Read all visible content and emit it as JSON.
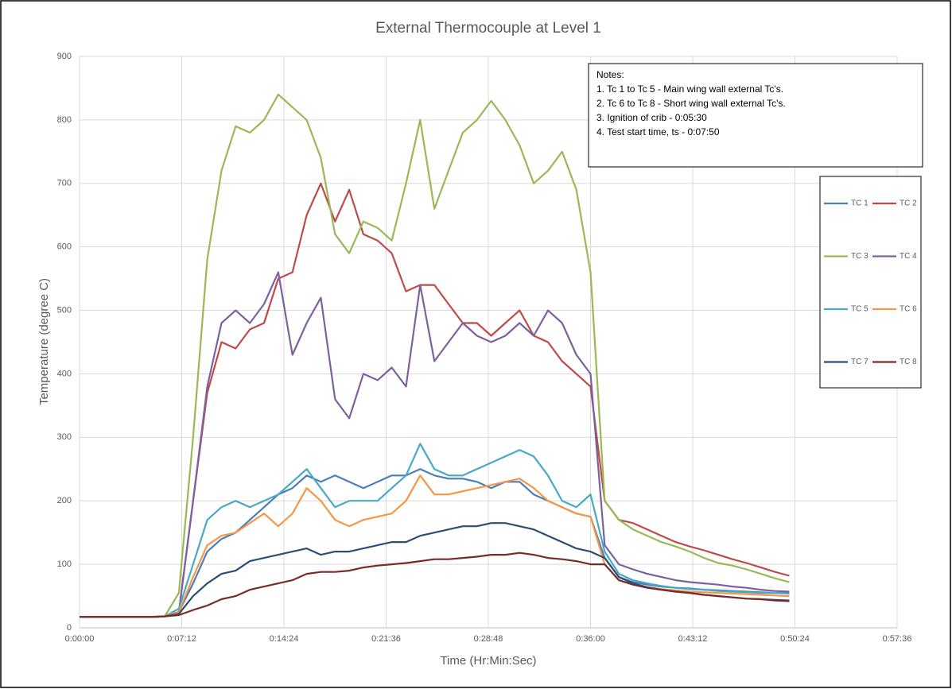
{
  "chart_data": {
    "type": "line",
    "title": "External Thermocouple at Level 1",
    "x_label": "Time (Hr:Min:Sec)",
    "y_label": "Temperature (degree C)",
    "grid": true,
    "legend": "right",
    "annotations": [
      "Notes:",
      "1. Tc 1 to Tc 5 - Main wing wall external Tc's.",
      "2. Tc 6 to Tc 8 - Short wing wall external Tc's.",
      "3. Ignition of crib - 0:05:30",
      "4. Test start time, ts - 0:07:50"
    ],
    "xlim": [
      0,
      3456
    ],
    "xticks": [
      {
        "value": 0,
        "label": "0:00:00"
      },
      {
        "value": 432,
        "label": "0:07:12"
      },
      {
        "value": 864,
        "label": "0:14:24"
      },
      {
        "value": 1296,
        "label": "0:21:36"
      },
      {
        "value": 1728,
        "label": "0:28:48"
      },
      {
        "value": 2160,
        "label": "0:36:00"
      },
      {
        "value": 2592,
        "label": "0:43:12"
      },
      {
        "value": 3024,
        "label": "0:50:24"
      },
      {
        "value": 3456,
        "label": "0:57:36"
      }
    ],
    "ylim": [
      0,
      900
    ],
    "yticks": [
      0,
      100,
      200,
      300,
      400,
      500,
      600,
      700,
      800,
      900
    ],
    "x": [
      0,
      60,
      120,
      180,
      240,
      300,
      360,
      420,
      480,
      540,
      600,
      660,
      720,
      780,
      840,
      900,
      960,
      1020,
      1080,
      1140,
      1200,
      1260,
      1320,
      1380,
      1440,
      1500,
      1560,
      1620,
      1680,
      1740,
      1800,
      1860,
      1920,
      1980,
      2040,
      2100,
      2160,
      2220,
      2280,
      2340,
      2400,
      2460,
      2520,
      2580,
      2640,
      2700,
      2760,
      2820,
      2880,
      2940,
      3000
    ],
    "series": [
      {
        "name": "TC 1",
        "color": "#4a7ebb",
        "values": [
          17,
          17,
          17,
          17,
          17,
          17,
          18,
          25,
          70,
          120,
          140,
          150,
          170,
          190,
          210,
          220,
          240,
          230,
          240,
          230,
          220,
          230,
          240,
          240,
          250,
          240,
          235,
          235,
          230,
          220,
          230,
          230,
          210,
          200,
          190,
          180,
          175,
          110,
          80,
          72,
          68,
          65,
          63,
          62,
          60,
          59,
          58,
          57,
          56,
          55,
          55
        ]
      },
      {
        "name": "TC 2",
        "color": "#be4b48",
        "values": [
          17,
          17,
          17,
          17,
          17,
          17,
          18,
          25,
          200,
          370,
          450,
          440,
          470,
          480,
          550,
          560,
          650,
          700,
          640,
          690,
          620,
          610,
          590,
          530,
          540,
          540,
          510,
          480,
          480,
          460,
          480,
          500,
          460,
          450,
          420,
          400,
          380,
          200,
          170,
          165,
          155,
          145,
          135,
          128,
          122,
          115,
          108,
          102,
          95,
          88,
          82
        ]
      },
      {
        "name": "TC 3",
        "color": "#98b954",
        "values": [
          17,
          17,
          17,
          17,
          17,
          17,
          18,
          55,
          300,
          580,
          720,
          790,
          780,
          800,
          840,
          820,
          800,
          740,
          620,
          590,
          640,
          630,
          610,
          700,
          800,
          660,
          720,
          780,
          800,
          830,
          800,
          760,
          700,
          720,
          750,
          690,
          560,
          200,
          170,
          155,
          145,
          135,
          128,
          120,
          110,
          102,
          98,
          92,
          85,
          78,
          72
        ]
      },
      {
        "name": "TC 4",
        "color": "#7d60a0",
        "values": [
          17,
          17,
          17,
          17,
          17,
          17,
          18,
          25,
          200,
          380,
          480,
          500,
          480,
          510,
          560,
          430,
          480,
          520,
          360,
          330,
          400,
          390,
          410,
          380,
          540,
          420,
          450,
          480,
          460,
          450,
          460,
          480,
          460,
          500,
          480,
          430,
          400,
          130,
          100,
          92,
          85,
          80,
          75,
          72,
          70,
          68,
          65,
          63,
          60,
          58,
          57
        ]
      },
      {
        "name": "TC 5",
        "color": "#46aac5",
        "values": [
          17,
          17,
          17,
          17,
          17,
          17,
          18,
          30,
          100,
          170,
          190,
          200,
          190,
          200,
          210,
          230,
          250,
          220,
          190,
          200,
          200,
          200,
          220,
          240,
          290,
          250,
          240,
          240,
          250,
          260,
          270,
          280,
          270,
          240,
          200,
          190,
          210,
          120,
          85,
          75,
          70,
          66,
          63,
          61,
          60,
          58,
          57,
          56,
          55,
          55,
          54
        ]
      },
      {
        "name": "TC 6",
        "color": "#f79646",
        "values": [
          17,
          17,
          17,
          17,
          17,
          17,
          18,
          25,
          80,
          130,
          145,
          150,
          165,
          180,
          160,
          180,
          220,
          200,
          170,
          160,
          170,
          175,
          180,
          200,
          240,
          210,
          210,
          215,
          220,
          225,
          230,
          235,
          220,
          200,
          190,
          180,
          175,
          100,
          75,
          68,
          64,
          61,
          59,
          57,
          56,
          55,
          54,
          53,
          52,
          51,
          50
        ]
      },
      {
        "name": "TC 7",
        "color": "#2c4d75",
        "values": [
          17,
          17,
          17,
          17,
          17,
          17,
          18,
          22,
          50,
          70,
          85,
          90,
          105,
          110,
          115,
          120,
          125,
          115,
          120,
          120,
          125,
          130,
          135,
          135,
          145,
          150,
          155,
          160,
          160,
          165,
          165,
          160,
          155,
          145,
          135,
          125,
          120,
          110,
          80,
          70,
          64,
          60,
          57,
          55,
          52,
          50,
          48,
          46,
          45,
          44,
          43
        ]
      },
      {
        "name": "TC 8",
        "color": "#772c2a",
        "values": [
          17,
          17,
          17,
          17,
          17,
          17,
          18,
          20,
          28,
          35,
          45,
          50,
          60,
          65,
          70,
          75,
          85,
          88,
          88,
          90,
          95,
          98,
          100,
          102,
          105,
          108,
          108,
          110,
          112,
          115,
          115,
          118,
          115,
          110,
          108,
          105,
          100,
          100,
          75,
          68,
          63,
          60,
          57,
          55,
          52,
          50,
          48,
          46,
          45,
          43,
          42
        ]
      }
    ]
  }
}
